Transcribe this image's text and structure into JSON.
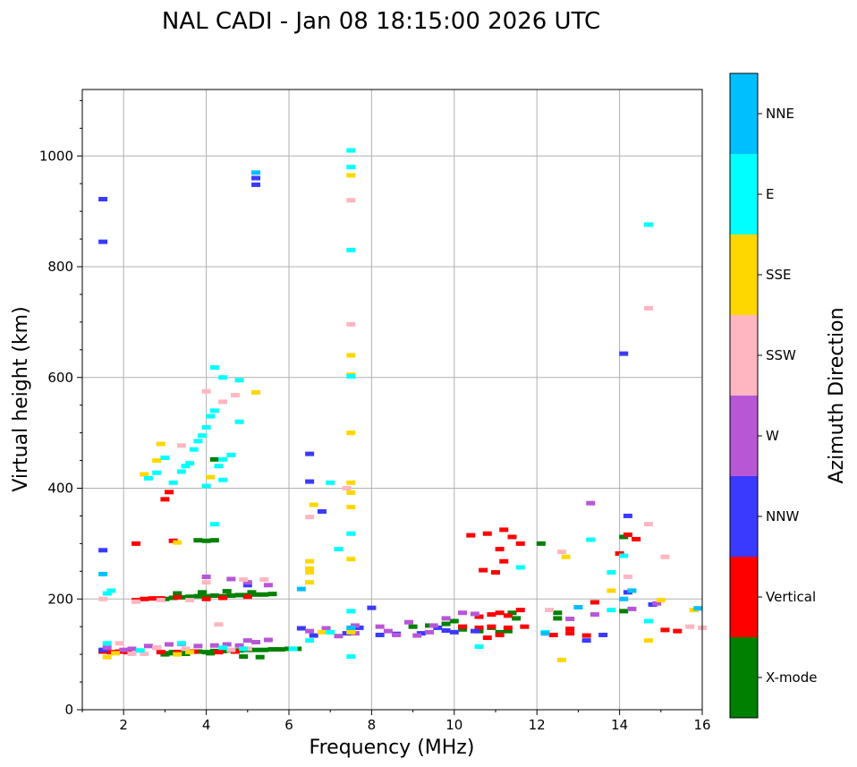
{
  "chart_data": {
    "type": "scatter",
    "title": "NAL CADI - Jan 08 18:15:00 2026 UTC",
    "xlabel": "Frequency (MHz)",
    "ylabel": "Virtual height (km)",
    "xlim": [
      1,
      16
    ],
    "ylim": [
      0,
      1120
    ],
    "xticks": [
      2,
      4,
      6,
      8,
      10,
      12,
      14,
      16
    ],
    "yticks": [
      0,
      200,
      400,
      600,
      800,
      1000
    ],
    "grid": true,
    "colorbar": {
      "label": "Azimuth Direction",
      "categories": [
        "X-mode",
        "Vertical",
        "NNW",
        "W",
        "SSW",
        "SSE",
        "E",
        "NNE"
      ],
      "colors": [
        "#008000",
        "#ff0000",
        "#3a3aff",
        "#b757d6",
        "#ffb6c1",
        "#ffd700",
        "#00ffff",
        "#00bfff"
      ]
    },
    "series": [
      {
        "name": "X-mode",
        "points": [
          [
            3.0,
            100
          ],
          [
            3.1,
            102
          ],
          [
            3.2,
            104
          ],
          [
            3.4,
            104
          ],
          [
            3.6,
            105
          ],
          [
            3.8,
            105
          ],
          [
            4.0,
            104
          ],
          [
            4.2,
            106
          ],
          [
            4.4,
            106
          ],
          [
            4.6,
            107
          ],
          [
            4.8,
            107
          ],
          [
            5.0,
            108
          ],
          [
            5.2,
            108
          ],
          [
            5.4,
            108
          ],
          [
            5.6,
            109
          ],
          [
            5.8,
            109
          ],
          [
            6.0,
            110
          ],
          [
            6.2,
            110
          ],
          [
            3.5,
            101
          ],
          [
            4.1,
            102
          ],
          [
            4.9,
            96
          ],
          [
            5.3,
            95
          ],
          [
            3.0,
            200
          ],
          [
            3.2,
            202
          ],
          [
            3.4,
            203
          ],
          [
            3.6,
            204
          ],
          [
            3.8,
            205
          ],
          [
            4.0,
            205
          ],
          [
            4.2,
            206
          ],
          [
            4.4,
            205
          ],
          [
            4.6,
            206
          ],
          [
            4.8,
            207
          ],
          [
            5.0,
            207
          ],
          [
            5.2,
            208
          ],
          [
            5.4,
            208
          ],
          [
            5.6,
            209
          ],
          [
            3.3,
            210
          ],
          [
            3.9,
            212
          ],
          [
            4.5,
            214
          ],
          [
            5.1,
            212
          ],
          [
            4.2,
            306
          ],
          [
            4.0,
            305
          ],
          [
            3.8,
            306
          ],
          [
            4.2,
            452
          ],
          [
            9.0,
            150
          ],
          [
            9.4,
            152
          ],
          [
            9.8,
            155
          ],
          [
            10.0,
            160
          ],
          [
            10.2,
            145
          ],
          [
            10.6,
            142
          ],
          [
            10.9,
            148
          ],
          [
            11.1,
            140
          ],
          [
            11.3,
            142
          ],
          [
            11.5,
            165
          ],
          [
            11.4,
            175
          ],
          [
            12.1,
            300
          ],
          [
            12.5,
            165
          ],
          [
            12.5,
            175
          ],
          [
            14.1,
            312
          ],
          [
            14.1,
            178
          ]
        ]
      },
      {
        "name": "Vertical",
        "points": [
          [
            1.5,
            105
          ],
          [
            1.7,
            104
          ],
          [
            1.9,
            105
          ],
          [
            2.1,
            104
          ],
          [
            2.9,
            104
          ],
          [
            3.3,
            104
          ],
          [
            3.7,
            105
          ],
          [
            4.3,
            104
          ],
          [
            4.7,
            105
          ],
          [
            2.3,
            198
          ],
          [
            2.5,
            200
          ],
          [
            2.7,
            201
          ],
          [
            2.9,
            201
          ],
          [
            3.3,
            203
          ],
          [
            4.0,
            200
          ],
          [
            4.4,
            202
          ],
          [
            5.0,
            204
          ],
          [
            2.3,
            300
          ],
          [
            3.2,
            305
          ],
          [
            3.0,
            380
          ],
          [
            3.1,
            393
          ],
          [
            10.4,
            315
          ],
          [
            10.8,
            318
          ],
          [
            11.2,
            325
          ],
          [
            11.4,
            312
          ],
          [
            11.6,
            300
          ],
          [
            11.1,
            290
          ],
          [
            11.2,
            268
          ],
          [
            10.7,
            252
          ],
          [
            11.0,
            248
          ],
          [
            10.6,
            168
          ],
          [
            10.9,
            172
          ],
          [
            11.1,
            175
          ],
          [
            11.3,
            170
          ],
          [
            11.6,
            180
          ],
          [
            10.2,
            150
          ],
          [
            10.6,
            148
          ],
          [
            10.9,
            150
          ],
          [
            11.3,
            148
          ],
          [
            11.7,
            150
          ],
          [
            10.8,
            130
          ],
          [
            11.1,
            135
          ],
          [
            12.4,
            135
          ],
          [
            12.8,
            138
          ],
          [
            13.2,
            134
          ],
          [
            12.2,
            138
          ],
          [
            12.8,
            146
          ],
          [
            14.2,
            316
          ],
          [
            14.4,
            308
          ],
          [
            15.1,
            144
          ],
          [
            15.4,
            142
          ],
          [
            13.4,
            194
          ],
          [
            14.0,
            282
          ]
        ]
      },
      {
        "name": "NNW",
        "points": [
          [
            1.5,
            922
          ],
          [
            1.5,
            845
          ],
          [
            5.2,
            960
          ],
          [
            5.2,
            948
          ],
          [
            6.5,
            462
          ],
          [
            6.8,
            358
          ],
          [
            6.5,
            412
          ],
          [
            5.0,
            225
          ],
          [
            6.3,
            147
          ],
          [
            6.6,
            134
          ],
          [
            7.4,
            138
          ],
          [
            7.7,
            148
          ],
          [
            8.0,
            184
          ],
          [
            8.2,
            135
          ],
          [
            8.6,
            137
          ],
          [
            9.2,
            138
          ],
          [
            9.6,
            148
          ],
          [
            9.8,
            143
          ],
          [
            10.0,
            140
          ],
          [
            10.5,
            142
          ],
          [
            13.2,
            125
          ],
          [
            13.6,
            135
          ],
          [
            14.1,
            643
          ],
          [
            14.2,
            350
          ],
          [
            14.2,
            212
          ],
          [
            14.8,
            190
          ],
          [
            1.5,
            288
          ],
          [
            1.5,
            108
          ]
        ]
      },
      {
        "name": "W",
        "points": [
          [
            1.6,
            112
          ],
          [
            2.0,
            108
          ],
          [
            2.2,
            110
          ],
          [
            2.6,
            115
          ],
          [
            2.8,
            112
          ],
          [
            3.1,
            118
          ],
          [
            3.4,
            119
          ],
          [
            3.8,
            115
          ],
          [
            4.2,
            116
          ],
          [
            4.5,
            118
          ],
          [
            4.8,
            116
          ],
          [
            5.0,
            125
          ],
          [
            5.2,
            122
          ],
          [
            5.5,
            126
          ],
          [
            6.5,
            142
          ],
          [
            6.9,
            147
          ],
          [
            7.2,
            133
          ],
          [
            7.6,
            138
          ],
          [
            7.6,
            152
          ],
          [
            8.2,
            150
          ],
          [
            8.4,
            142
          ],
          [
            8.6,
            135
          ],
          [
            8.9,
            158
          ],
          [
            9.1,
            134
          ],
          [
            9.4,
            140
          ],
          [
            9.5,
            152
          ],
          [
            9.8,
            165
          ],
          [
            10.2,
            175
          ],
          [
            10.5,
            173
          ],
          [
            12.8,
            164
          ],
          [
            13.3,
            373
          ],
          [
            13.4,
            172
          ],
          [
            14.3,
            182
          ],
          [
            14.9,
            192
          ],
          [
            4.0,
            240
          ],
          [
            4.6,
            236
          ],
          [
            5.0,
            230
          ],
          [
            5.5,
            225
          ]
        ]
      },
      {
        "name": "SSW",
        "points": [
          [
            1.5,
            200
          ],
          [
            2.3,
            195
          ],
          [
            2.9,
            198
          ],
          [
            3.6,
            198
          ],
          [
            4.0,
            575
          ],
          [
            4.4,
            556
          ],
          [
            4.7,
            568
          ],
          [
            3.4,
            477
          ],
          [
            4.3,
            154
          ],
          [
            4.0,
            230
          ],
          [
            4.9,
            235
          ],
          [
            5.4,
            235
          ],
          [
            1.9,
            120
          ],
          [
            2.2,
            101
          ],
          [
            2.5,
            101
          ],
          [
            2.8,
            112
          ],
          [
            3.5,
            110
          ],
          [
            4.6,
            108
          ],
          [
            5.0,
            110
          ],
          [
            6.5,
            348
          ],
          [
            7.5,
            696
          ],
          [
            7.5,
            920
          ],
          [
            7.4,
            400
          ],
          [
            7.5,
            142
          ],
          [
            12.3,
            180
          ],
          [
            12.6,
            285
          ],
          [
            14.2,
            240
          ],
          [
            14.7,
            335
          ],
          [
            14.7,
            725
          ],
          [
            15.1,
            276
          ],
          [
            15.7,
            150
          ],
          [
            16.0,
            148
          ],
          [
            15.9,
            183
          ]
        ]
      },
      {
        "name": "SSE",
        "points": [
          [
            1.6,
            95
          ],
          [
            1.8,
            102
          ],
          [
            2.8,
            450
          ],
          [
            2.5,
            425
          ],
          [
            2.9,
            480
          ],
          [
            3.3,
            302
          ],
          [
            3.3,
            100
          ],
          [
            3.6,
            104
          ],
          [
            4.1,
            420
          ],
          [
            5.2,
            573
          ],
          [
            6.5,
            268
          ],
          [
            6.5,
            255
          ],
          [
            6.5,
            248
          ],
          [
            6.5,
            230
          ],
          [
            6.6,
            370
          ],
          [
            7.5,
            965
          ],
          [
            7.5,
            640
          ],
          [
            7.5,
            605
          ],
          [
            7.5,
            500
          ],
          [
            7.5,
            410
          ],
          [
            7.5,
            392
          ],
          [
            7.5,
            366
          ],
          [
            7.5,
            272
          ],
          [
            7.5,
            140
          ],
          [
            6.8,
            140
          ],
          [
            12.6,
            90
          ],
          [
            12.7,
            276
          ],
          [
            13.8,
            215
          ],
          [
            14.7,
            125
          ],
          [
            15.0,
            198
          ],
          [
            15.8,
            180
          ]
        ]
      },
      {
        "name": "E",
        "points": [
          [
            1.6,
            210
          ],
          [
            1.7,
            215
          ],
          [
            2.6,
            418
          ],
          [
            2.8,
            428
          ],
          [
            3.0,
            455
          ],
          [
            3.2,
            410
          ],
          [
            3.4,
            430
          ],
          [
            3.5,
            440
          ],
          [
            3.6,
            445
          ],
          [
            3.7,
            470
          ],
          [
            3.8,
            485
          ],
          [
            3.9,
            495
          ],
          [
            4.0,
            510
          ],
          [
            4.1,
            530
          ],
          [
            4.2,
            540
          ],
          [
            4.3,
            440
          ],
          [
            4.4,
            452
          ],
          [
            4.6,
            460
          ],
          [
            4.8,
            520
          ],
          [
            4.2,
            618
          ],
          [
            4.4,
            600
          ],
          [
            4.8,
            595
          ],
          [
            1.6,
            120
          ],
          [
            2.4,
            107
          ],
          [
            3.4,
            120
          ],
          [
            4.4,
            112
          ],
          [
            4.9,
            110
          ],
          [
            6.1,
            110
          ],
          [
            6.5,
            125
          ],
          [
            7.0,
            140
          ],
          [
            7.5,
            1010
          ],
          [
            7.5,
            980
          ],
          [
            7.5,
            830
          ],
          [
            7.5,
            602
          ],
          [
            7.5,
            318
          ],
          [
            7.2,
            290
          ],
          [
            7.5,
            178
          ],
          [
            7.5,
            96
          ],
          [
            7.0,
            410
          ],
          [
            11.6,
            257
          ],
          [
            12.2,
            140
          ],
          [
            13.3,
            307
          ],
          [
            13.8,
            248
          ],
          [
            13.8,
            180
          ],
          [
            14.1,
            278
          ],
          [
            14.7,
            876
          ],
          [
            14.7,
            160
          ],
          [
            10.6,
            114
          ],
          [
            4.2,
            335
          ],
          [
            4.0,
            404
          ],
          [
            4.4,
            415
          ]
        ]
      },
      {
        "name": "NNE",
        "points": [
          [
            1.5,
            245
          ],
          [
            5.2,
            970
          ],
          [
            6.3,
            218
          ],
          [
            7.5,
            148
          ],
          [
            12.2,
            138
          ],
          [
            14.1,
            200
          ],
          [
            14.3,
            215
          ],
          [
            15.9,
            183
          ],
          [
            13.0,
            185
          ]
        ]
      }
    ]
  }
}
